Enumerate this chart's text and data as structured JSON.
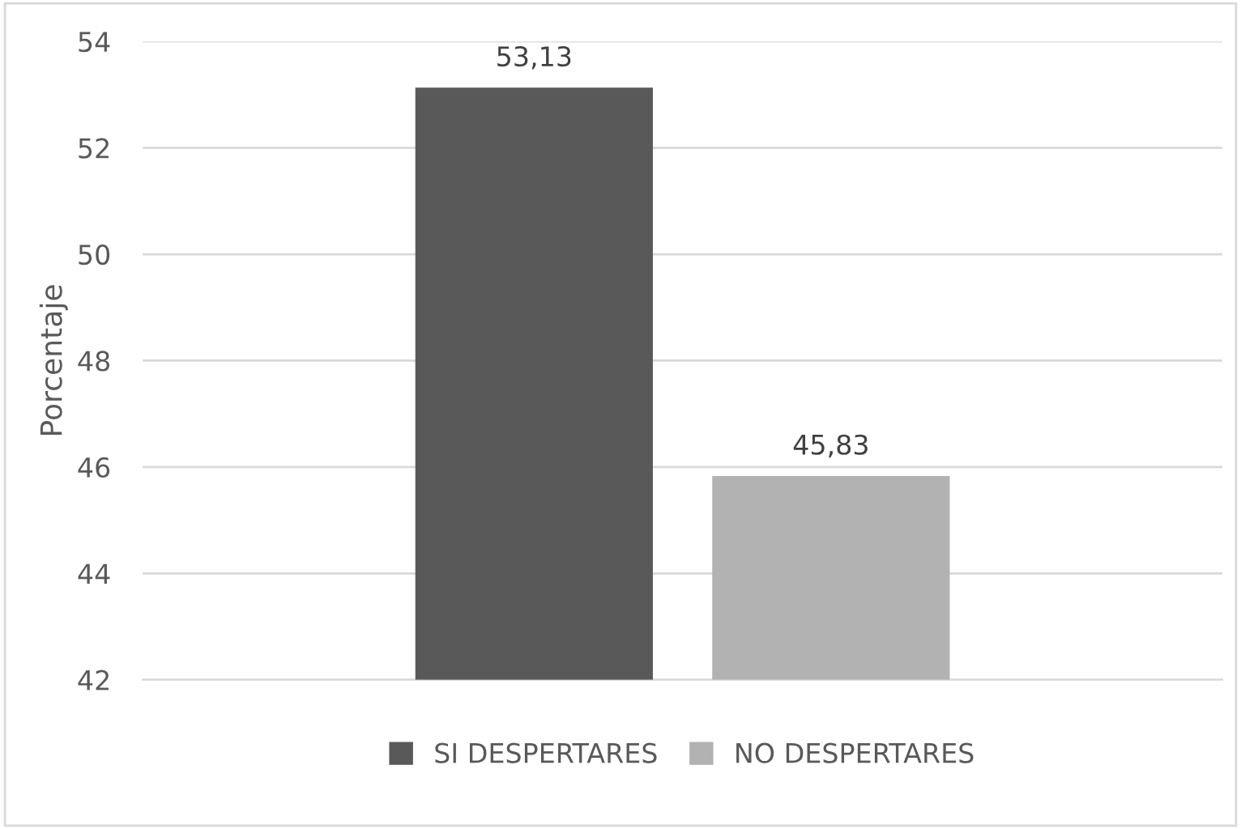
{
  "chart_data": {
    "type": "bar",
    "ylabel": "Porcentaje",
    "categories": [
      null
    ],
    "series": [
      {
        "name": "SI DESPERTARES",
        "color": "#595959",
        "values": [
          53.13
        ],
        "value_labels": [
          "53,13"
        ]
      },
      {
        "name": "NO DESPERTARES",
        "color": "#b2b2b2",
        "values": [
          45.83
        ],
        "value_labels": [
          "45,83"
        ]
      }
    ],
    "ylim": [
      42,
      54
    ],
    "yticks": [
      42,
      44,
      46,
      48,
      50,
      52,
      54
    ],
    "grid": "y",
    "legend": "bottom"
  }
}
